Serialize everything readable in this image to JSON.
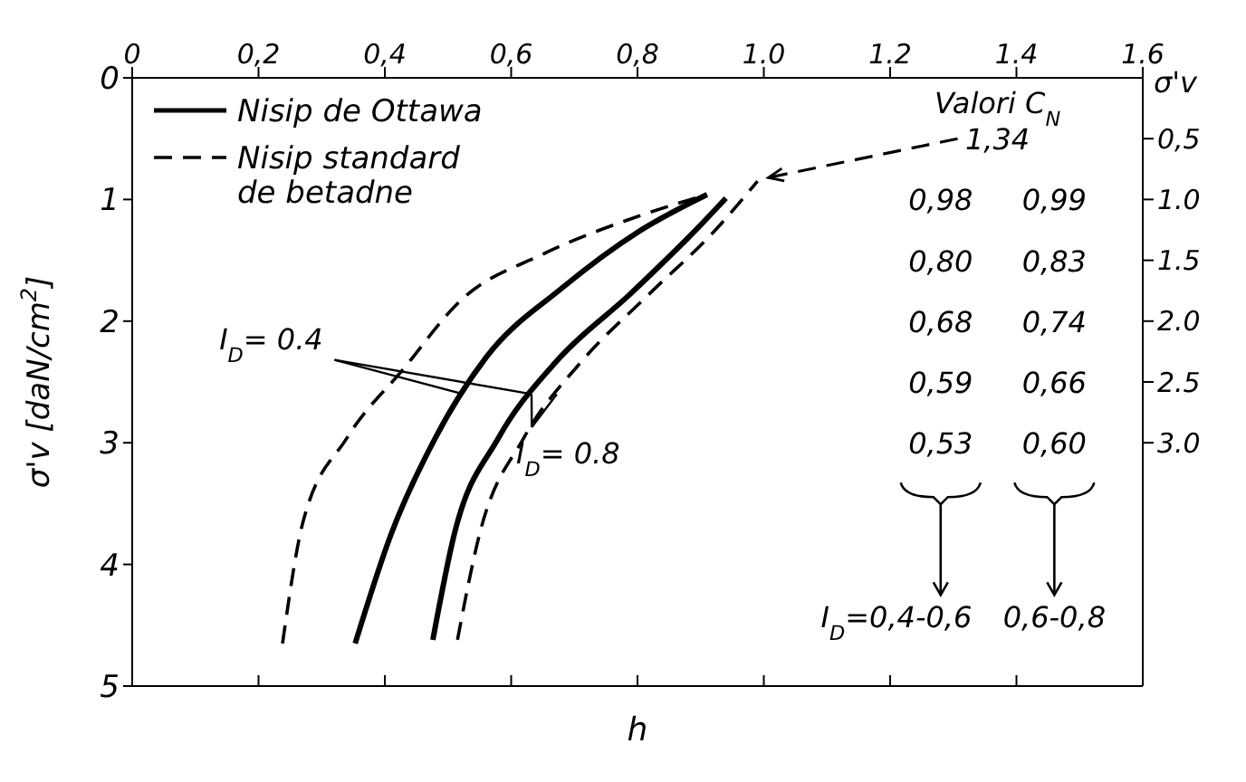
{
  "chart_data": {
    "type": "line",
    "xlabel": "h",
    "ylabel": "σ'v [daN/cm$^{2}$]",
    "y2label": "σ'v",
    "xlim": [
      0,
      1.6
    ],
    "xticks": [
      0,
      {
        "value": 0.2,
        "label": "0,2"
      },
      {
        "value": 0.4,
        "label": "0,4"
      },
      {
        "value": 0.6,
        "label": "0,6"
      },
      {
        "value": 0.8,
        "label": "0,8"
      },
      {
        "value": 1.0,
        "label": "1.0"
      },
      {
        "value": 1.2,
        "label": "1.2"
      },
      {
        "value": 1.4,
        "label": "1.4"
      },
      {
        "value": 1.6,
        "label": "1.6"
      }
    ],
    "ylim": [
      5,
      0
    ],
    "yticks": [
      0,
      1,
      2,
      3,
      4,
      5
    ],
    "y2lim": [
      5,
      0
    ],
    "y2ticks": [
      {
        "value": 0.5,
        "label": "0,5"
      },
      {
        "value": 1.0,
        "label": "1.0"
      },
      {
        "value": 1.5,
        "label": "1.5"
      },
      {
        "value": 2.0,
        "label": "2.0"
      },
      {
        "value": 2.5,
        "label": "2.5"
      },
      {
        "value": 3.0,
        "label": "3.0"
      }
    ],
    "legend": "top left",
    "series": [
      {
        "name": "Nisip de Ottawa",
        "color": "#000000",
        "line_style": "solid",
        "x": [
          0.353,
          0.41,
          0.48,
          0.56,
          0.68,
          0.8,
          0.91
        ],
        "values": [
          4.65,
          3.75,
          2.96,
          2.3,
          1.73,
          1.27,
          0.96
        ]
      },
      {
        "color": "#000000",
        "line_style": "solid",
        "x": [
          0.476,
          0.51,
          0.58,
          0.67,
          0.79,
          0.9,
          0.94
        ],
        "values": [
          4.62,
          3.75,
          2.96,
          2.34,
          1.77,
          1.21,
          0.99
        ]
      },
      {
        "name": "Nisip standard de betadne",
        "color": "#000000",
        "line_style": "dashed",
        "x": [
          0.238,
          0.27,
          0.34,
          0.43,
          0.52,
          0.65,
          0.8,
          0.91
        ],
        "values": [
          4.65,
          3.66,
          2.96,
          2.39,
          1.83,
          1.45,
          1.14,
          0.96
        ]
      },
      {
        "color": "#000000",
        "line_style": "dashed",
        "x": [
          0.515,
          0.55,
          0.62,
          0.71,
          0.82,
          0.92,
          0.99
        ],
        "values": [
          4.62,
          3.75,
          2.96,
          2.34,
          1.77,
          1.27,
          0.85
        ]
      }
    ],
    "annotations": [
      {
        "text": "I$_{D}$= 0.4",
        "x": 0.52,
        "y": 2.6
      },
      {
        "text": "I$_{D}$= 0.8",
        "x": 0.63,
        "y": 2.6
      },
      "Valori C$_{N}$",
      "1,34",
      "0,98",
      "0,99",
      "0,80",
      "0,83",
      "0,68",
      "0,74",
      "0,59",
      "0,66",
      "0,53",
      "0,60",
      "I$_{D}$=0,4-0,6",
      "0,6-0,8"
    ]
  }
}
